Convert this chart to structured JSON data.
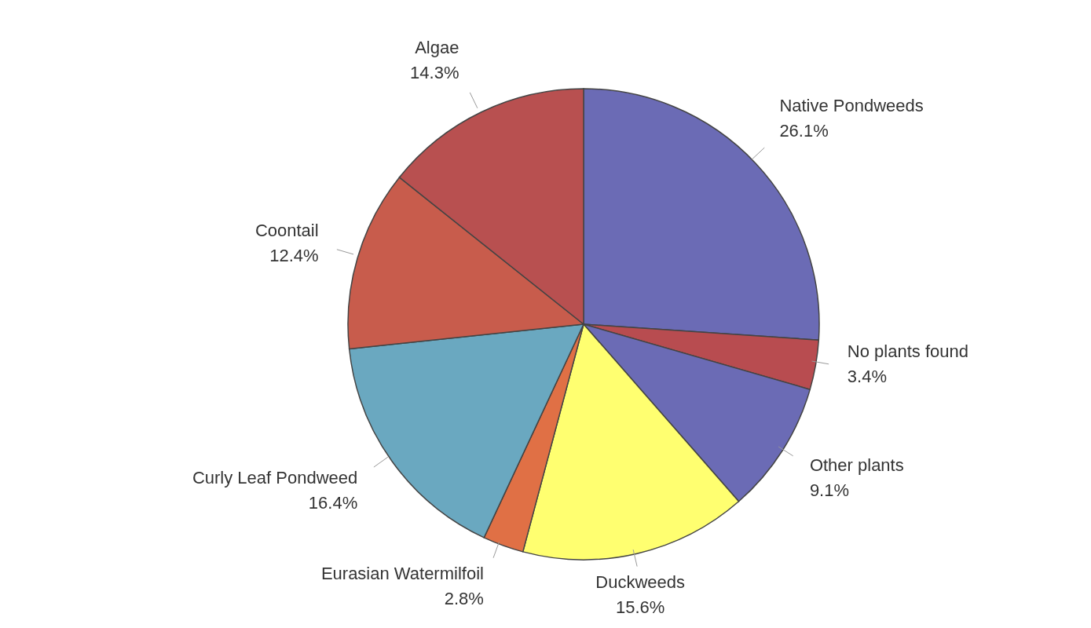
{
  "chart_data": {
    "type": "pie",
    "categories": [
      "Native Pondweeds",
      "No plants found",
      "Other plants",
      "Duckweeds",
      "Eurasian Watermilfoil",
      "Curly Leaf Pondweed",
      "Coontail",
      "Algae"
    ],
    "values": [
      26.1,
      3.4,
      9.1,
      15.6,
      2.8,
      16.4,
      12.4,
      14.3
    ],
    "value_labels": [
      "26.1%",
      "3.4%",
      "9.1%",
      "15.6%",
      "2.8%",
      "16.4%",
      "12.4%",
      "14.3%"
    ],
    "colors": [
      "#6b6bb5",
      "#b84c50",
      "#6b6bb5",
      "#ffff70",
      "#e07045",
      "#6aa8c0",
      "#c85c4c",
      "#b85050"
    ]
  }
}
